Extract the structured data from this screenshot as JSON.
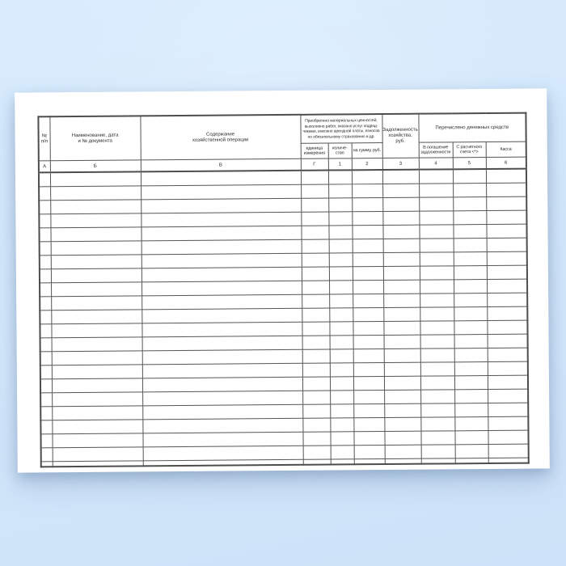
{
  "colors": {
    "background_top": "#d9ecfd",
    "background_bottom": "#cde2f8",
    "paper": "#ffffff",
    "table_line": "#4d4d4d",
    "text": "#2a2a2a",
    "shadow": "#7490b5"
  },
  "table": {
    "header": {
      "num": "№\nп/п",
      "doc": "Наименование, дата\nи № документа",
      "content": "Содержание\nхозяйственной операции",
      "group_acquired": "Приобретено материальных ценностей,\nвыполнено работ, оказано услуг подряд-\nчиками, внесено арендной платы, взносов\nпо обязательному страхованию и др.",
      "unit": "единица\nизмерения",
      "qty": "количе-\nство",
      "sum": "на сумму, руб.",
      "debt": "Задолженность\nхозяйства,\nруб.",
      "group_transferred": "Перечислено денежных средств",
      "repay": "В погашение\nзадолженности",
      "account": "С расчетного\nсчета <*>",
      "cash": "Касса",
      "codes": [
        "А",
        "Б",
        "В",
        "Г",
        "1",
        "2",
        "3",
        "4",
        "5",
        "6"
      ]
    },
    "body_row_count": 22,
    "column_count": 10
  }
}
